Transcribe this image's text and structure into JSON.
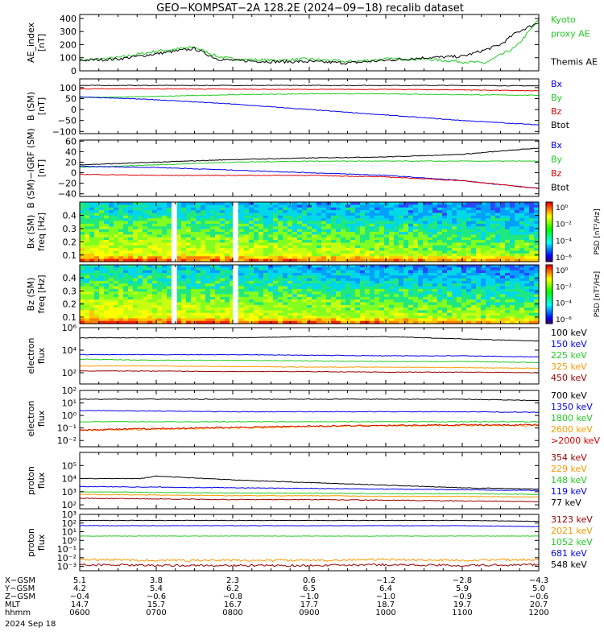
{
  "title": "GEO−KOMPSAT−2A 128.2E (2024−09−18) recalib dataset",
  "time_axis": {
    "ticks": [
      "0600",
      "0700",
      "0800",
      "0900",
      "1000",
      "1100",
      "1200"
    ],
    "range": [
      6,
      12
    ]
  },
  "ephemeris": {
    "labels": [
      "X−GSM",
      "Y−GSM",
      "Z−GSM",
      "MLT",
      "hhmm"
    ],
    "rows": [
      [
        "5.1",
        "3.8",
        "2.3",
        "0.6",
        "−1.2",
        "−2.8",
        "−4.3"
      ],
      [
        "4.2",
        "5.4",
        "6.2",
        "6.5",
        "6.4",
        "5.9",
        "5.0"
      ],
      [
        "−0.4",
        "−0.6",
        "−0.8",
        "−1.0",
        "−1.0",
        "−0.9",
        "−0.6"
      ],
      [
        "14.7",
        "15.7",
        "16.7",
        "17.7",
        "18.7",
        "19.7",
        "20.7"
      ],
      [
        "0600",
        "0700",
        "0800",
        "0900",
        "1000",
        "1100",
        "1200"
      ]
    ],
    "date": "2024 Sep 18"
  },
  "colors": {
    "black": "#000000",
    "green": "#22cc22",
    "blue": "#0000ee",
    "red": "#dd0000",
    "orange": "#ff9900",
    "darkred": "#990000"
  },
  "panels": [
    {
      "id": "ae",
      "ylabel": [
        "AE_index",
        "[nT]"
      ],
      "ylim": [
        0,
        430
      ],
      "scale": "linear",
      "ticks": [
        "0",
        "100",
        "200",
        "300",
        "400"
      ],
      "tickvals": [
        0,
        100,
        200,
        300,
        400
      ],
      "legend": [
        {
          "text": "Kyoto",
          "color": "#22cc22"
        },
        {
          "text": "proxy AE",
          "color": "#22cc22"
        },
        {
          "text": "",
          "color": "#000"
        },
        {
          "text": "Themis AE",
          "color": "#000000"
        }
      ]
    },
    {
      "id": "bsm",
      "ylabel": [
        "B (SM)",
        "[nT]"
      ],
      "ylim": [
        -110,
        140
      ],
      "scale": "linear",
      "ticks": [
        "−100",
        "−50",
        "0",
        "50",
        "100"
      ],
      "tickvals": [
        -100,
        -50,
        0,
        50,
        100
      ],
      "legend": [
        {
          "text": "Bx",
          "color": "#0000ee"
        },
        {
          "text": "By",
          "color": "#22cc22"
        },
        {
          "text": "Bz",
          "color": "#dd0000"
        },
        {
          "text": "Btot",
          "color": "#000000"
        }
      ]
    },
    {
      "id": "bigrf",
      "ylabel": [
        "B (SM)−IGRF (SM)",
        "[nT]"
      ],
      "ylim": [
        -45,
        62
      ],
      "scale": "linear",
      "ticks": [
        "−40",
        "−20",
        "0",
        "20",
        "40",
        "60"
      ],
      "tickvals": [
        -40,
        -20,
        0,
        20,
        40,
        60
      ],
      "legend": [
        {
          "text": "Bx",
          "color": "#0000ee"
        },
        {
          "text": "By",
          "color": "#22cc22"
        },
        {
          "text": "Bz",
          "color": "#dd0000"
        },
        {
          "text": "Btot",
          "color": "#000000"
        }
      ]
    },
    {
      "id": "specx",
      "ylabel": [
        "Bx (SM)",
        "freq [Hz]"
      ],
      "ylim": [
        0.05,
        0.5
      ],
      "scale": "linear",
      "ticks": [
        "0.1",
        "0.2",
        "0.3",
        "0.4"
      ],
      "tickvals": [
        0.1,
        0.2,
        0.3,
        0.4
      ],
      "cbar": {
        "label": "PSD [nT²/Hz]",
        "ticks": [
          "10⁰",
          "10⁻²",
          "10⁻⁴",
          "10⁻⁶"
        ]
      }
    },
    {
      "id": "specz",
      "ylabel": [
        "Bz (SM)",
        "freq [Hz]"
      ],
      "ylim": [
        0.05,
        0.5
      ],
      "scale": "linear",
      "ticks": [
        "0.1",
        "0.2",
        "0.3",
        "0.4"
      ],
      "tickvals": [
        0.1,
        0.2,
        0.3,
        0.4
      ],
      "cbar": {
        "label": "PSD [nT²/Hz]",
        "ticks": [
          "10⁰",
          "10⁻²",
          "10⁻⁴",
          "10⁻⁶"
        ]
      }
    },
    {
      "id": "elec1",
      "ylabel": [
        "electron",
        "flux"
      ],
      "ylim": [
        1,
        6
      ],
      "scale": "log",
      "ticks": [
        "10²",
        "10⁴",
        "10⁶"
      ],
      "tickvals": [
        2,
        4,
        6
      ],
      "legend": [
        {
          "text": "100 keV",
          "color": "#000000"
        },
        {
          "text": "150 keV",
          "color": "#0000ee"
        },
        {
          "text": "225 keV",
          "color": "#22cc22"
        },
        {
          "text": "325 keV",
          "color": "#ff9900"
        },
        {
          "text": "450 keV",
          "color": "#990000"
        }
      ]
    },
    {
      "id": "elec2",
      "ylabel": [
        "electron",
        "flux"
      ],
      "ylim": [
        -2.5,
        2
      ],
      "scale": "log",
      "ticks": [
        "10⁻²",
        "10⁻¹",
        "10⁰",
        "10¹",
        "10²"
      ],
      "tickvals": [
        -2,
        -1,
        0,
        1,
        2
      ],
      "legend": [
        {
          "text": "700 keV",
          "color": "#000000"
        },
        {
          "text": "1350 keV",
          "color": "#0000ee"
        },
        {
          "text": "1800 keV",
          "color": "#22cc22"
        },
        {
          "text": "2600 keV",
          "color": "#ff9900"
        },
        {
          "text": ">2000 keV",
          "color": "#dd0000"
        }
      ]
    },
    {
      "id": "prot1",
      "ylabel": [
        "proton",
        "flux"
      ],
      "ylim": [
        1.7,
        6
      ],
      "scale": "log",
      "ticks": [
        "10²",
        "10³",
        "10⁴",
        "10⁵"
      ],
      "tickvals": [
        2,
        3,
        4,
        5
      ],
      "legend": [
        {
          "text": "354 keV",
          "color": "#990000"
        },
        {
          "text": "229 keV",
          "color": "#ff9900"
        },
        {
          "text": "148 keV",
          "color": "#22cc22"
        },
        {
          "text": "119 keV",
          "color": "#0000ee"
        },
        {
          "text": "77 keV",
          "color": "#000000"
        }
      ]
    },
    {
      "id": "prot2",
      "ylabel": [
        "proton",
        "flux"
      ],
      "ylim": [
        -3.5,
        3
      ],
      "scale": "log",
      "ticks": [
        "10⁻³",
        "10⁻²",
        "10⁻¹",
        "10⁰",
        "10¹",
        "10²",
        "10³"
      ],
      "tickvals": [
        -3,
        -2,
        -1,
        0,
        1,
        2,
        3
      ],
      "legend": [
        {
          "text": "3123 keV",
          "color": "#990000"
        },
        {
          "text": "2021 keV",
          "color": "#ff9900"
        },
        {
          "text": "1052 keV",
          "color": "#22cc22"
        },
        {
          "text": "681 keV",
          "color": "#0000ee"
        },
        {
          "text": "548 keV",
          "color": "#000000"
        }
      ]
    }
  ],
  "chart_data": {
    "type": "line",
    "title": "GEO−KOMPSAT−2A 128.2E (2024−09−18) recalib dataset",
    "x_unit": "UT hour",
    "series": [
      {
        "panel": "ae",
        "name": "Kyoto proxy AE",
        "color": "#22cc22",
        "x": [
          6,
          6.5,
          7,
          7.5,
          7.8,
          8,
          8.5,
          9,
          9.5,
          10,
          10.5,
          11,
          11.3,
          11.5,
          11.7,
          12
        ],
        "y": [
          80,
          100,
          150,
          180,
          110,
          90,
          80,
          90,
          70,
          90,
          90,
          70,
          60,
          120,
          180,
          390
        ]
      },
      {
        "panel": "ae",
        "name": "Themis AE",
        "color": "#000000",
        "x": [
          6,
          6.5,
          7,
          7.5,
          7.8,
          8,
          8.5,
          9,
          9.5,
          10,
          10.5,
          11,
          11.3,
          11.5,
          11.7,
          12
        ],
        "y": [
          80,
          90,
          130,
          170,
          90,
          80,
          70,
          70,
          60,
          80,
          100,
          110,
          160,
          200,
          290,
          370
        ]
      },
      {
        "panel": "bsm",
        "name": "Btot",
        "color": "#000000",
        "x": [
          6,
          7,
          8,
          9,
          10,
          11,
          12
        ],
        "y": [
          110,
          110,
          110,
          110,
          110,
          110,
          108
        ]
      },
      {
        "panel": "bsm",
        "name": "Bz",
        "color": "#dd0000",
        "x": [
          6,
          7,
          8,
          9,
          10,
          11,
          12
        ],
        "y": [
          95,
          95,
          93,
          92,
          92,
          90,
          85
        ]
      },
      {
        "panel": "bsm",
        "name": "By",
        "color": "#22cc22",
        "x": [
          6,
          7,
          8,
          9,
          10,
          11,
          12
        ],
        "y": [
          55,
          60,
          68,
          72,
          72,
          68,
          65
        ]
      },
      {
        "panel": "bsm",
        "name": "Bx",
        "color": "#0000ee",
        "x": [
          6,
          7,
          8,
          9,
          10,
          11,
          12
        ],
        "y": [
          58,
          45,
          25,
          0,
          -25,
          -50,
          -70
        ]
      },
      {
        "panel": "bigrf",
        "name": "Btot",
        "color": "#000000",
        "x": [
          6,
          7,
          8,
          9,
          10,
          11,
          12
        ],
        "y": [
          15,
          20,
          25,
          28,
          30,
          35,
          47
        ]
      },
      {
        "panel": "bigrf",
        "name": "By",
        "color": "#22cc22",
        "x": [
          6,
          7,
          8,
          9,
          10,
          11,
          12
        ],
        "y": [
          10,
          15,
          20,
          22,
          22,
          22,
          22
        ]
      },
      {
        "panel": "bigrf",
        "name": "Bx",
        "color": "#0000ee",
        "x": [
          6,
          7,
          8,
          9,
          10,
          11,
          12
        ],
        "y": [
          12,
          10,
          5,
          0,
          -5,
          -15,
          -30
        ]
      },
      {
        "panel": "bigrf",
        "name": "Bz",
        "color": "#dd0000",
        "x": [
          6,
          7,
          8,
          9,
          10,
          11,
          12
        ],
        "y": [
          -3,
          -5,
          -5,
          -5,
          -8,
          -15,
          -30
        ]
      },
      {
        "panel": "elec1",
        "name": "100 keV",
        "color": "#000000",
        "x": [
          6,
          7,
          8,
          9,
          10,
          11,
          12
        ],
        "y": [
          5.1,
          5.1,
          5.1,
          5.2,
          5.2,
          5.0,
          4.8
        ]
      },
      {
        "panel": "elec1",
        "name": "150 keV",
        "color": "#0000ee",
        "x": [
          6,
          7,
          8,
          9,
          10,
          11,
          12
        ],
        "y": [
          3.6,
          3.6,
          3.6,
          3.55,
          3.5,
          3.5,
          3.4
        ]
      },
      {
        "panel": "elec1",
        "name": "225 keV",
        "color": "#22cc22",
        "x": [
          6,
          7,
          8,
          9,
          10,
          11,
          12
        ],
        "y": [
          3.2,
          3.1,
          3.1,
          3.05,
          3.0,
          3.0,
          2.9
        ]
      },
      {
        "panel": "elec1",
        "name": "325 keV",
        "color": "#ff9900",
        "x": [
          6,
          7,
          8,
          9,
          10,
          11,
          12
        ],
        "y": [
          2.6,
          2.6,
          2.55,
          2.5,
          2.5,
          2.45,
          2.4
        ]
      },
      {
        "panel": "elec1",
        "name": "450 keV",
        "color": "#990000",
        "x": [
          6,
          7,
          8,
          9,
          10,
          11,
          12
        ],
        "y": [
          2.15,
          2.15,
          2.1,
          2.1,
          2.05,
          2.05,
          2.0
        ]
      },
      {
        "panel": "elec2",
        "name": "700 keV",
        "color": "#000000",
        "x": [
          6,
          7,
          8,
          9,
          10,
          11,
          12
        ],
        "y": [
          1.3,
          1.3,
          1.3,
          1.3,
          1.3,
          1.3,
          1.2
        ]
      },
      {
        "panel": "elec2",
        "name": "1350 keV",
        "color": "#0000ee",
        "x": [
          6,
          7,
          8,
          9,
          10,
          11,
          12
        ],
        "y": [
          0.4,
          0.35,
          0.3,
          0.3,
          0.3,
          0.3,
          0.25
        ]
      },
      {
        "panel": "elec2",
        "name": "1800 keV",
        "color": "#22cc22",
        "x": [
          6,
          7,
          8,
          9,
          10,
          11,
          12
        ],
        "y": [
          -0.5,
          -0.5,
          -0.5,
          -0.5,
          -0.5,
          -0.5,
          -0.5
        ]
      },
      {
        "panel": "elec2",
        "name": "2600 keV",
        "color": "#ff9900",
        "x": [
          6,
          7,
          8,
          9,
          10,
          11,
          12
        ],
        "y": [
          -1.2,
          -1.1,
          -1.0,
          -0.9,
          -0.8,
          -0.8,
          -0.8
        ]
      },
      {
        "panel": "elec2",
        "name": ">2000 keV",
        "color": "#dd0000",
        "x": [
          6,
          7,
          8,
          9,
          10,
          11,
          12
        ],
        "y": [
          -1.15,
          -1.05,
          -0.95,
          -0.85,
          -0.8,
          -0.75,
          -0.75
        ]
      },
      {
        "panel": "prot1",
        "name": "77 keV",
        "color": "#000000",
        "x": [
          6,
          6.8,
          7,
          8,
          9,
          10,
          11,
          12
        ],
        "y": [
          4.0,
          4.0,
          4.2,
          3.9,
          3.7,
          3.5,
          3.3,
          3.2
        ]
      },
      {
        "panel": "prot1",
        "name": "119 keV",
        "color": "#0000ee",
        "x": [
          6,
          7,
          8,
          9,
          10,
          11,
          12
        ],
        "y": [
          3.4,
          3.35,
          3.3,
          3.25,
          3.2,
          3.15,
          3.1
        ]
      },
      {
        "panel": "prot1",
        "name": "148 keV",
        "color": "#22cc22",
        "x": [
          6,
          7,
          8,
          9,
          10,
          11,
          12
        ],
        "y": [
          3.0,
          2.95,
          2.9,
          2.9,
          2.85,
          2.85,
          2.8
        ]
      },
      {
        "panel": "prot1",
        "name": "229 keV",
        "color": "#ff9900",
        "x": [
          6,
          7,
          8,
          9,
          10,
          11,
          12
        ],
        "y": [
          2.8,
          2.75,
          2.7,
          2.7,
          2.65,
          2.65,
          2.6
        ]
      },
      {
        "panel": "prot1",
        "name": "354 keV",
        "color": "#990000",
        "x": [
          6,
          7,
          8,
          9,
          10,
          11,
          12
        ],
        "y": [
          2.5,
          2.45,
          2.4,
          2.4,
          2.35,
          2.3,
          2.25
        ]
      },
      {
        "panel": "prot2",
        "name": "548 keV",
        "color": "#000000",
        "x": [
          6,
          7,
          8,
          9,
          10,
          11,
          12
        ],
        "y": [
          2.3,
          2.3,
          2.3,
          2.3,
          2.3,
          2.3,
          2.2
        ]
      },
      {
        "panel": "prot2",
        "name": "681 keV",
        "color": "#0000ee",
        "x": [
          6,
          7,
          8,
          9,
          10,
          11,
          12
        ],
        "y": [
          1.7,
          1.7,
          1.7,
          1.7,
          1.7,
          1.7,
          1.6
        ]
      },
      {
        "panel": "prot2",
        "name": "1052 keV",
        "color": "#22cc22",
        "x": [
          6,
          7,
          8,
          9,
          10,
          11,
          12
        ],
        "y": [
          0.5,
          0.5,
          0.5,
          0.5,
          0.5,
          0.5,
          0.5
        ]
      },
      {
        "panel": "prot2",
        "name": "2021 keV",
        "color": "#ff9900",
        "x": [
          6,
          7,
          8,
          9,
          10,
          11,
          12
        ],
        "y": [
          -2.2,
          -2.3,
          -2.3,
          -2.3,
          -2.2,
          -2.3,
          -2.2
        ]
      },
      {
        "panel": "prot2",
        "name": "3123 keV",
        "color": "#990000",
        "x": [
          6,
          7,
          8,
          9,
          10,
          11,
          12
        ],
        "y": [
          -2.8,
          -2.9,
          -2.9,
          -2.9,
          -2.8,
          -2.9,
          -2.8
        ]
      }
    ],
    "spectrogram_gaps_hours": [
      [
        7.2,
        7.27
      ],
      [
        8.0,
        8.07
      ]
    ]
  }
}
